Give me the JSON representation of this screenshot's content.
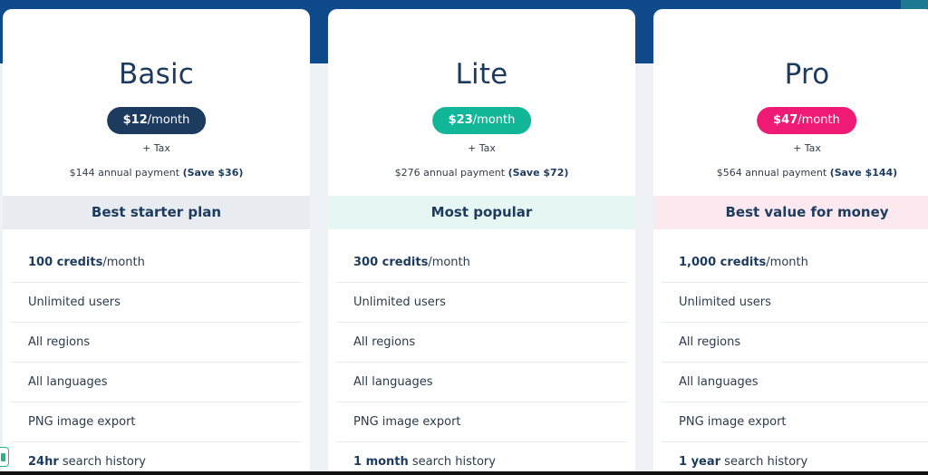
{
  "plans": [
    {
      "name": "Basic",
      "price": "$12",
      "period": "/month",
      "tax": "+ Tax",
      "annual": "$144 annual payment",
      "save": "(Save $36)",
      "tagline": "Best starter plan",
      "features": [
        {
          "strong": "100 credits",
          "text": "/month"
        },
        {
          "strong": "",
          "text": "Unlimited users"
        },
        {
          "strong": "",
          "text": "All regions"
        },
        {
          "strong": "",
          "text": "All languages"
        },
        {
          "strong": "",
          "text": "PNG image export"
        },
        {
          "strong": "24hr",
          "text": " search history"
        }
      ],
      "accent_color": "#1d3b5e"
    },
    {
      "name": "Lite",
      "price": "$23",
      "period": "/month",
      "tax": "+ Tax",
      "annual": "$276 annual payment",
      "save": "(Save $72)",
      "tagline": "Most popular",
      "features": [
        {
          "strong": "300 credits",
          "text": "/month"
        },
        {
          "strong": "",
          "text": "Unlimited users"
        },
        {
          "strong": "",
          "text": "All regions"
        },
        {
          "strong": "",
          "text": "All languages"
        },
        {
          "strong": "",
          "text": "PNG image export"
        },
        {
          "strong": "1 month",
          "text": " search history"
        }
      ],
      "accent_color": "#12b79a"
    },
    {
      "name": "Pro",
      "price": "$47",
      "period": "/month",
      "tax": "+ Tax",
      "annual": "$564 annual payment",
      "save": "(Save $144)",
      "tagline": "Best value for money",
      "features": [
        {
          "strong": "1,000 credits",
          "text": "/month"
        },
        {
          "strong": "",
          "text": "Unlimited users"
        },
        {
          "strong": "",
          "text": "All regions"
        },
        {
          "strong": "",
          "text": "All languages"
        },
        {
          "strong": "",
          "text": "PNG image export"
        },
        {
          "strong": "1 year",
          "text": " search history"
        }
      ],
      "accent_color": "#ee1a73"
    }
  ],
  "colors": {
    "header_band": "#0f4a8a",
    "text_primary": "#1d3b5e"
  }
}
